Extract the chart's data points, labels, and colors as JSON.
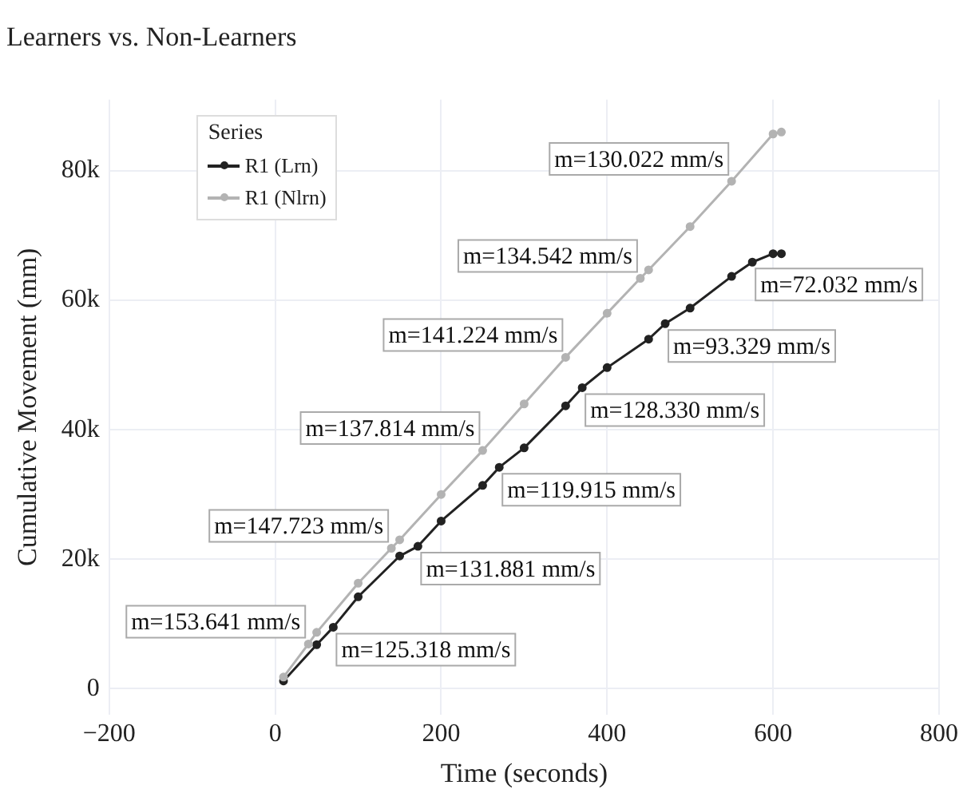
{
  "chart_data": {
    "type": "line",
    "title": "Learners vs. Non-Learners",
    "xlabel": "Time (seconds)",
    "ylabel": "Cumulative Movement (mm)",
    "legend_title": "Series",
    "legend": "top left",
    "grid": true,
    "marker": "circle",
    "line_style": "solid",
    "xlim": [
      -200,
      800
    ],
    "ylim": [
      -4000,
      91000
    ],
    "xticks": [
      {
        "value": -200,
        "label": "−200"
      },
      0,
      200,
      400,
      600,
      800
    ],
    "yticks": [
      0,
      {
        "value": 20000,
        "label": "20k"
      },
      {
        "value": 40000,
        "label": "40k"
      },
      {
        "value": 60000,
        "label": "60k"
      },
      {
        "value": 80000,
        "label": "80k"
      }
    ],
    "series": [
      {
        "name": "R1 (Lrn)",
        "color": "#222222",
        "x": [
          10,
          50,
          70,
          100,
          150,
          172,
          200,
          250,
          270,
          300,
          350,
          370,
          400,
          450,
          470,
          500,
          550,
          575,
          600,
          610
        ],
        "values": [
          1200,
          6800,
          9500,
          14200,
          20500,
          22000,
          25900,
          31400,
          34200,
          37200,
          43700,
          46500,
          49600,
          54000,
          56400,
          58800,
          63700,
          65900,
          67200,
          67200
        ]
      },
      {
        "name": "R1 (Nlrn)",
        "color": "#b3b3b3",
        "x": [
          10,
          40,
          50,
          100,
          140,
          150,
          200,
          250,
          300,
          350,
          400,
          440,
          450,
          500,
          550,
          600,
          610
        ],
        "values": [
          1800,
          6900,
          8700,
          16300,
          21700,
          23000,
          30000,
          36800,
          44000,
          51200,
          58000,
          63400,
          64700,
          71400,
          78400,
          85700,
          86000
        ]
      }
    ],
    "annotations": [
      {
        "text": "m=125.318 mm/s",
        "x": 70,
        "y": 9500
      },
      {
        "text": "m=131.881 mm/s",
        "x": 172,
        "y": 22000
      },
      {
        "text": "m=119.915 mm/s",
        "x": 270,
        "y": 34200
      },
      {
        "text": "m=128.330 mm/s",
        "x": 370,
        "y": 46500
      },
      {
        "text": "m=93.329 mm/s",
        "x": 470,
        "y": 56400
      },
      {
        "text": "m=72.032 mm/s",
        "x": 575,
        "y": 65900
      },
      {
        "text": "m=153.641 mm/s",
        "x": 40,
        "y": 6900
      },
      {
        "text": "m=147.723 mm/s",
        "x": 140,
        "y": 21700
      },
      {
        "text": "m=137.814 mm/s",
        "x": 250,
        "y": 36800
      },
      {
        "text": "m=141.224 mm/s",
        "x": 350,
        "y": 51200
      },
      {
        "text": "m=134.542 mm/s",
        "x": 440,
        "y": 63400
      },
      {
        "text": "m=130.022 mm/s",
        "x": 550,
        "y": 78400
      }
    ]
  }
}
